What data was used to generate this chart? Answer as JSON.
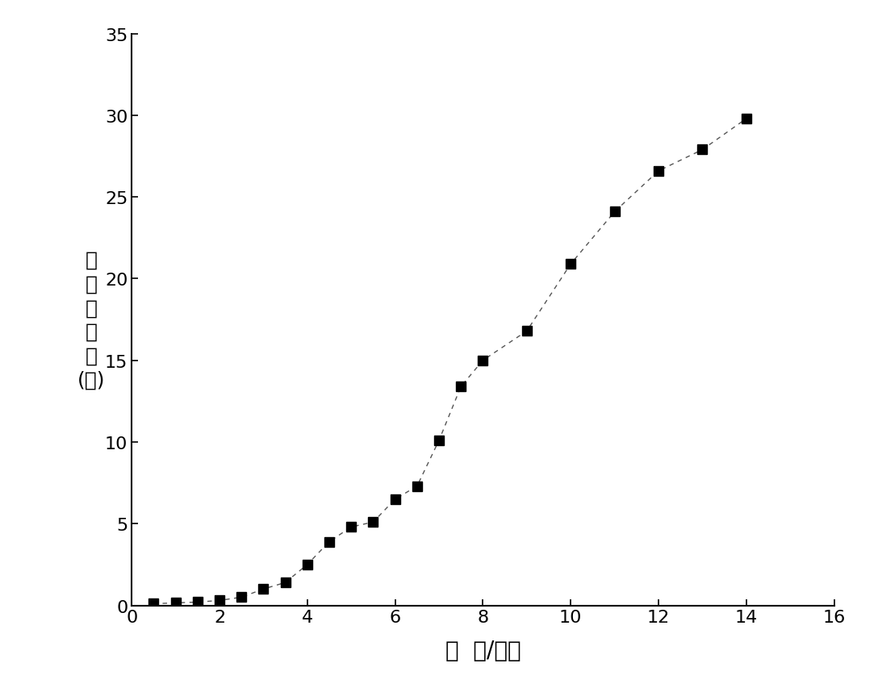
{
  "x": [
    0.5,
    1.0,
    1.5,
    2.0,
    2.5,
    3.0,
    3.5,
    4.0,
    4.5,
    5.0,
    5.5,
    6.0,
    6.5,
    7.0,
    7.5,
    8.0,
    9.0,
    10.0,
    11.0,
    12.0,
    13.0,
    14.0
  ],
  "y": [
    0.1,
    0.15,
    0.2,
    0.3,
    0.5,
    1.0,
    1.4,
    2.5,
    3.9,
    4.8,
    5.1,
    6.5,
    7.3,
    10.1,
    13.4,
    15.0,
    16.8,
    20.9,
    24.1,
    26.6,
    27.9,
    29.8
  ],
  "marker_color": "#000000",
  "line_color": "#555555",
  "background_color": "#ffffff",
  "xlabel": "时  间/小时",
  "ylabel_chars": [
    "累",
    "积",
    "释",
    "放",
    "度",
    "(％)"
  ],
  "xlim": [
    0,
    16
  ],
  "ylim": [
    0,
    35
  ],
  "xticks": [
    0,
    2,
    4,
    6,
    8,
    10,
    12,
    14,
    16
  ],
  "yticks": [
    0,
    5,
    10,
    15,
    20,
    25,
    30,
    35
  ],
  "xlabel_fontsize": 20,
  "ylabel_fontsize": 18,
  "tick_fontsize": 16
}
